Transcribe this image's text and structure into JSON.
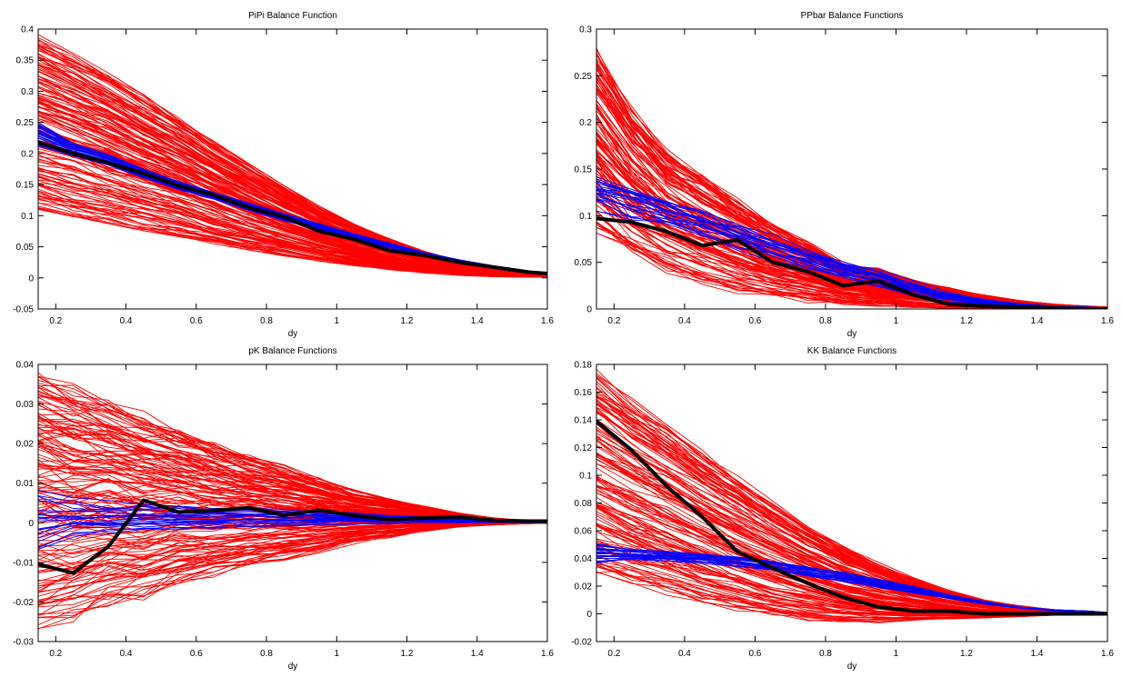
{
  "chart_data": [
    {
      "type": "line",
      "title": "PiPi Balance Function",
      "xlabel": "dy",
      "ylabel": "",
      "xlim": [
        0.15,
        1.6
      ],
      "ylim": [
        -0.05,
        0.4
      ],
      "xticks": [
        0.2,
        0.4,
        0.6,
        0.8,
        1,
        1.2,
        1.4,
        1.6
      ],
      "yticks": [
        -0.05,
        0,
        0.05,
        0.1,
        0.15,
        0.2,
        0.25,
        0.3,
        0.35,
        0.4
      ],
      "x": [
        0.15,
        0.25,
        0.35,
        0.45,
        0.55,
        0.65,
        0.75,
        0.85,
        0.95,
        1.05,
        1.15,
        1.25,
        1.35,
        1.45,
        1.55,
        1.6
      ],
      "series": [
        {
          "role": "ensemble",
          "color": "#ff0000",
          "count": 160,
          "upper": [
            0.39,
            0.36,
            0.33,
            0.295,
            0.258,
            0.22,
            0.183,
            0.148,
            0.115,
            0.087,
            0.063,
            0.043,
            0.027,
            0.015,
            0.008,
            0.006
          ],
          "lower": [
            0.11,
            0.099,
            0.088,
            0.077,
            0.066,
            0.055,
            0.045,
            0.036,
            0.027,
            0.02,
            0.013,
            0.008,
            0.004,
            0.002,
            0.001,
            0.001
          ],
          "noise": 0.002
        },
        {
          "role": "band",
          "color": "#0000ff",
          "count": 28,
          "upper": [
            0.248,
            0.216,
            0.198,
            0.175,
            0.155,
            0.137,
            0.12,
            0.103,
            0.087,
            0.071,
            0.056,
            0.041,
            0.029,
            0.019,
            0.011,
            0.008
          ],
          "lower": [
            0.21,
            0.196,
            0.18,
            0.16,
            0.142,
            0.126,
            0.108,
            0.092,
            0.077,
            0.062,
            0.048,
            0.035,
            0.024,
            0.015,
            0.009,
            0.006
          ],
          "noise": 0.002
        },
        {
          "role": "reference",
          "color": "#000000",
          "values": [
            0.218,
            0.2,
            0.185,
            0.168,
            0.148,
            0.133,
            0.113,
            0.098,
            0.075,
            0.062,
            0.044,
            0.036,
            0.025,
            0.017,
            0.009,
            0.007
          ]
        }
      ]
    },
    {
      "type": "line",
      "title": "PPbar Balance Functions",
      "xlabel": "dy",
      "ylabel": "",
      "xlim": [
        0.15,
        1.6
      ],
      "ylim": [
        0,
        0.3
      ],
      "xticks": [
        0.2,
        0.4,
        0.6,
        0.8,
        1,
        1.2,
        1.4,
        1.6
      ],
      "yticks": [
        0,
        0.05,
        0.1,
        0.15,
        0.2,
        0.25,
        0.3
      ],
      "x": [
        0.15,
        0.25,
        0.35,
        0.45,
        0.55,
        0.65,
        0.75,
        0.85,
        0.95,
        1.05,
        1.15,
        1.25,
        1.35,
        1.45,
        1.55,
        1.6
      ],
      "series": [
        {
          "role": "ensemble",
          "color": "#ff0000",
          "count": 130,
          "upper": [
            0.275,
            0.21,
            0.165,
            0.14,
            0.115,
            0.09,
            0.07,
            0.05,
            0.042,
            0.03,
            0.022,
            0.015,
            0.009,
            0.005,
            0.003,
            0.002
          ],
          "lower": [
            0.085,
            0.06,
            0.042,
            0.03,
            0.02,
            0.014,
            0.009,
            0.006,
            0.004,
            0.002,
            0.001,
            0.0005,
            0.0,
            0.0,
            0.0,
            0.0
          ],
          "noise": 0.01
        },
        {
          "role": "band",
          "color": "#0000ff",
          "count": 24,
          "upper": [
            0.14,
            0.128,
            0.115,
            0.103,
            0.09,
            0.078,
            0.062,
            0.05,
            0.04,
            0.028,
            0.017,
            0.01,
            0.006,
            0.003,
            0.002,
            0.001
          ],
          "lower": [
            0.11,
            0.1,
            0.09,
            0.078,
            0.066,
            0.054,
            0.044,
            0.034,
            0.025,
            0.016,
            0.009,
            0.005,
            0.003,
            0.002,
            0.001,
            0.0005
          ],
          "noise": 0.006
        },
        {
          "role": "reference",
          "color": "#000000",
          "values": [
            0.097,
            0.093,
            0.083,
            0.068,
            0.074,
            0.05,
            0.04,
            0.025,
            0.03,
            0.015,
            0.005,
            0.003,
            0.002,
            0.001,
            0.0,
            0.0
          ]
        }
      ]
    },
    {
      "type": "line",
      "title": "pK Balance Functions",
      "xlabel": "dy",
      "ylabel": "",
      "xlim": [
        0.15,
        1.6
      ],
      "ylim": [
        -0.03,
        0.04
      ],
      "xticks": [
        0.2,
        0.4,
        0.6,
        0.8,
        1,
        1.2,
        1.4,
        1.6
      ],
      "yticks": [
        -0.03,
        -0.02,
        -0.01,
        0,
        0.01,
        0.02,
        0.03,
        0.04
      ],
      "x": [
        0.15,
        0.25,
        0.35,
        0.45,
        0.55,
        0.65,
        0.75,
        0.85,
        0.95,
        1.05,
        1.15,
        1.25,
        1.35,
        1.45,
        1.55,
        1.6
      ],
      "series": [
        {
          "role": "ensemble",
          "color": "#ff0000",
          "count": 150,
          "upper": [
            0.038,
            0.034,
            0.031,
            0.027,
            0.024,
            0.02,
            0.017,
            0.014,
            0.011,
            0.008,
            0.006,
            0.004,
            0.0025,
            0.0012,
            0.0005,
            0.0003
          ],
          "lower": [
            -0.026,
            -0.023,
            -0.02,
            -0.018,
            -0.015,
            -0.013,
            -0.011,
            -0.009,
            -0.007,
            -0.005,
            -0.0035,
            -0.002,
            -0.001,
            -0.0005,
            -0.0002,
            -0.0001
          ],
          "noise": 0.0025
        },
        {
          "role": "band",
          "color": "#0000ff",
          "count": 22,
          "upper": [
            0.009,
            0.006,
            0.005,
            0.005,
            0.0045,
            0.004,
            0.004,
            0.0035,
            0.003,
            0.0025,
            0.002,
            0.0015,
            0.001,
            0.0008,
            0.0005,
            0.0003
          ],
          "lower": [
            -0.008,
            -0.004,
            -0.003,
            -0.0025,
            -0.002,
            -0.0015,
            -0.001,
            -0.0008,
            -0.0005,
            -0.0003,
            -0.0002,
            0.0,
            0.0,
            0.0,
            0.0,
            0.0
          ],
          "noise": 0.0015
        },
        {
          "role": "reference",
          "color": "#000000",
          "values": [
            -0.0105,
            -0.0127,
            -0.006,
            0.0057,
            0.0027,
            0.0031,
            0.0038,
            0.0019,
            0.0032,
            0.0018,
            0.0008,
            0.0012,
            0.0015,
            0.0006,
            0.0004,
            0.0004
          ]
        }
      ]
    },
    {
      "type": "line",
      "title": "KK Balance Functions",
      "xlabel": "dy",
      "ylabel": "",
      "xlim": [
        0.15,
        1.6
      ],
      "ylim": [
        -0.02,
        0.18
      ],
      "xticks": [
        0.2,
        0.4,
        0.6,
        0.8,
        1,
        1.2,
        1.4,
        1.6
      ],
      "yticks": [
        -0.02,
        0,
        0.02,
        0.04,
        0.06,
        0.08,
        0.1,
        0.12,
        0.14,
        0.16,
        0.18
      ],
      "x": [
        0.15,
        0.25,
        0.35,
        0.45,
        0.55,
        0.65,
        0.75,
        0.85,
        0.95,
        1.05,
        1.15,
        1.25,
        1.35,
        1.45,
        1.55,
        1.6
      ],
      "series": [
        {
          "role": "ensemble",
          "color": "#ff0000",
          "count": 140,
          "upper": [
            0.176,
            0.155,
            0.137,
            0.118,
            0.1,
            0.082,
            0.065,
            0.05,
            0.037,
            0.026,
            0.017,
            0.01,
            0.006,
            0.003,
            0.0015,
            0.001
          ],
          "lower": [
            0.029,
            0.022,
            0.015,
            0.008,
            0.003,
            -0.001,
            -0.004,
            -0.006,
            -0.006,
            -0.005,
            -0.004,
            -0.003,
            -0.002,
            -0.001,
            -0.0005,
            0.0
          ],
          "noise": 0.002
        },
        {
          "role": "band",
          "color": "#0000ff",
          "count": 26,
          "upper": [
            0.051,
            0.047,
            0.045,
            0.043,
            0.041,
            0.038,
            0.034,
            0.03,
            0.025,
            0.02,
            0.014,
            0.009,
            0.005,
            0.003,
            0.002,
            0.001
          ],
          "lower": [
            0.036,
            0.039,
            0.038,
            0.036,
            0.034,
            0.031,
            0.027,
            0.023,
            0.019,
            0.015,
            0.011,
            0.007,
            0.004,
            0.002,
            0.001,
            0.0005
          ],
          "noise": 0.0015
        },
        {
          "role": "reference",
          "color": "#000000",
          "values": [
            0.139,
            0.118,
            0.092,
            0.07,
            0.045,
            0.033,
            0.022,
            0.012,
            0.005,
            0.002,
            0.002,
            0.0,
            0.0,
            0.0,
            0.0,
            0.0
          ]
        }
      ]
    }
  ]
}
